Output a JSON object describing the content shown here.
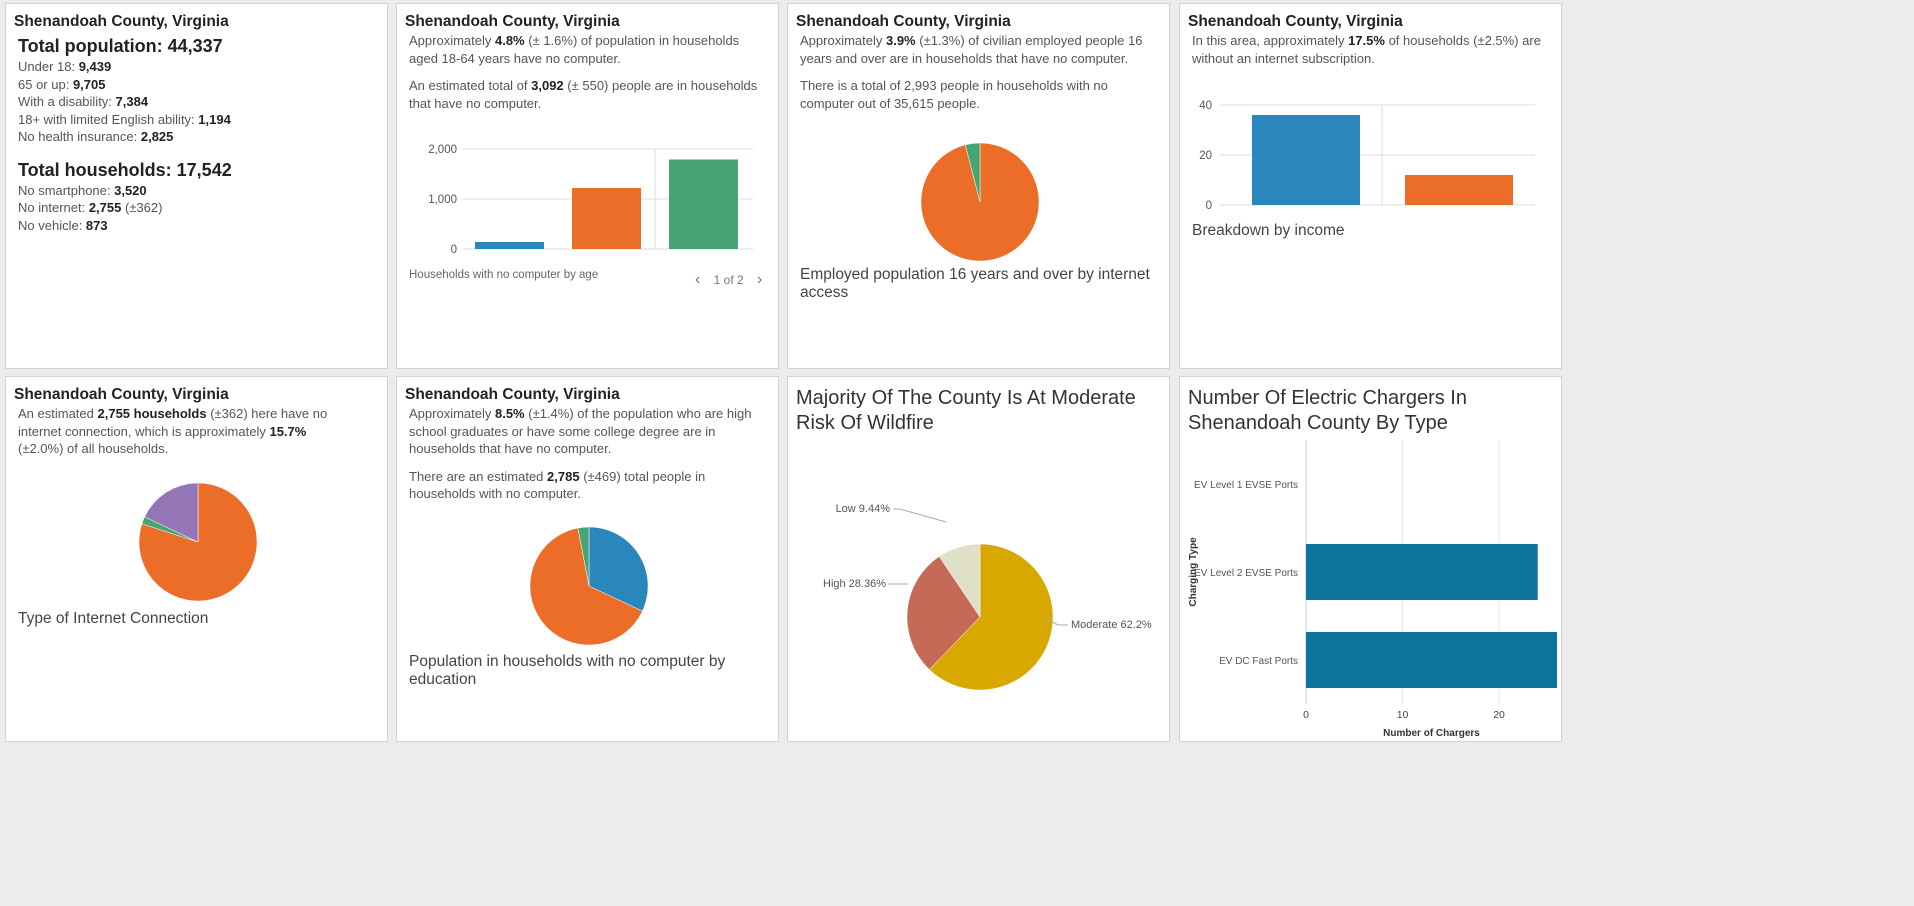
{
  "colors": {
    "blue": "#2987bd",
    "orange": "#ec6d28",
    "green": "#46a572",
    "purple": "#9475b6",
    "teal": "#0b739c",
    "gold": "#d9a800",
    "rust": "#c56a56",
    "beige": "#e0dfc8"
  },
  "card1": {
    "title": "Shenandoah County, Virginia",
    "total_population_label": "Total population: 44,337",
    "pop_lines": [
      {
        "label": "Under 18: ",
        "value": "9,439"
      },
      {
        "label": "65 or up: ",
        "value": "9,705"
      },
      {
        "label": "With a disability: ",
        "value": "7,384"
      },
      {
        "label": "18+ with limited English ability: ",
        "value": "1,194"
      },
      {
        "label": "No health insurance: ",
        "value": "2,825"
      }
    ],
    "total_households_label": "Total households: 17,542",
    "hh_lines": [
      {
        "label": "No smartphone: ",
        "value": "3,520",
        "suffix": ""
      },
      {
        "label": "No internet: ",
        "value": "2,755",
        "suffix": " (±362)"
      },
      {
        "label": "No vehicle: ",
        "value": "873",
        "suffix": ""
      }
    ]
  },
  "card2": {
    "title": "Shenandoah County, Virginia",
    "p1_a": "Approximately ",
    "p1_b": "4.8%",
    "p1_c": " (± 1.6%) of population in households aged 18-64 years have no computer.",
    "p2_a": "An estimated total of ",
    "p2_b": "3,092",
    "p2_c": " (± 550) people are in households that have no computer.",
    "caption": "Households with no computer by age",
    "pager_text": "1 of 2",
    "pager_prev": "‹",
    "pager_next": "›",
    "chart_data": {
      "type": "bar",
      "categories": [
        "",
        "",
        ""
      ],
      "values": [
        140,
        1220,
        1790
      ],
      "yticks": [
        "0",
        "1,000",
        "2,000"
      ],
      "ylim": [
        0,
        2000
      ]
    }
  },
  "card3": {
    "title": "Shenandoah County, Virginia",
    "p1_a": "Approximately ",
    "p1_b": "3.9%",
    "p1_c": " (±1.3%) of civilian employed people 16 years and over are in households that have no computer.",
    "p2": "There is a total of 2,993 people in households with no computer out of 35,615 people.",
    "caption": "Employed population 16 years and over by internet access",
    "chart_data": {
      "type": "pie",
      "values": [
        96,
        4
      ],
      "series_colors": [
        "orange",
        "green"
      ]
    }
  },
  "card4": {
    "title": "Shenandoah County, Virginia",
    "p1_a": "In this area, approximately ",
    "p1_b": "17.5%",
    "p1_c": " of households (±2.5%) are without an internet subscription.",
    "caption": "Breakdown by income",
    "chart_data": {
      "type": "bar",
      "values": [
        36,
        12
      ],
      "yticks": [
        "0",
        "20",
        "40"
      ],
      "ylim": [
        0,
        40
      ]
    }
  },
  "card5": {
    "title": "Shenandoah County, Virginia",
    "p1_a": "An estimated ",
    "p1_b": "2,755 households",
    "p1_c": " (±362) here have no internet connection, which is approximately ",
    "p1_d": "15.7%",
    "p1_e": " (±2.0%) of all households.",
    "caption": "Type of Internet Connection",
    "chart_data": {
      "type": "pie",
      "values": [
        80,
        2,
        18
      ],
      "series_colors": [
        "orange",
        "green",
        "purple"
      ]
    }
  },
  "card6": {
    "title": "Shenandoah County, Virginia",
    "p1_a": "Approximately ",
    "p1_b": "8.5%",
    "p1_c": " (±1.4%) of the population who are high school graduates or have some college degree are in households that have no computer.",
    "p2_a": "There are an estimated ",
    "p2_b": "2,785",
    "p2_c": " (±469) total people in households with no computer.",
    "caption": "Population in households with no computer by education",
    "chart_data": {
      "type": "pie",
      "values": [
        32,
        65,
        3
      ],
      "series_colors": [
        "blue",
        "orange",
        "green"
      ]
    }
  },
  "card7": {
    "title": "Majority Of The County Is At Moderate Risk Of Wildfire",
    "chart_data": {
      "type": "pie",
      "categories": [
        "Moderate",
        "High",
        "Low"
      ],
      "values": [
        62.2,
        28.36,
        9.44
      ],
      "labels": [
        "Moderate 62.2%",
        "High 28.36%",
        "Low 9.44%"
      ],
      "series_colors": [
        "gold",
        "rust",
        "beige"
      ]
    }
  },
  "card8": {
    "title": "Number Of Electric Chargers In Shenandoah County By Type",
    "chart_data": {
      "type": "bar",
      "orientation": "horizontal",
      "categories": [
        "EV Level 1 EVSE Ports",
        "EV Level 2 EVSE Ports",
        "EV DC Fast Ports"
      ],
      "values": [
        0,
        24,
        26
      ],
      "xticks": [
        "0",
        "10",
        "20"
      ],
      "xlim": [
        0,
        26
      ],
      "xlabel": "Number of Chargers",
      "ylabel": "Charging Type"
    }
  }
}
